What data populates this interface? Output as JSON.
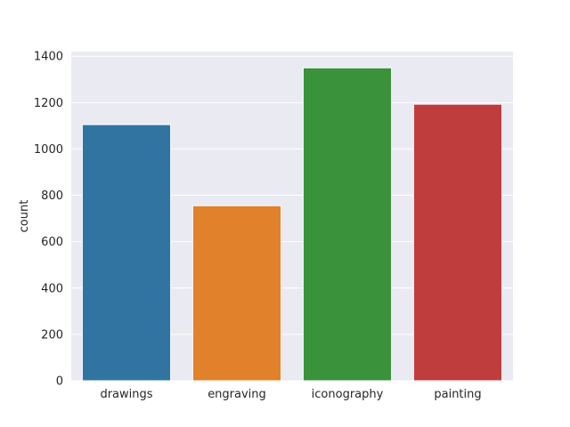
{
  "chart_data": {
    "type": "bar",
    "title": "",
    "xlabel": "",
    "ylabel": "count",
    "categories": [
      "drawings",
      "engraving",
      "iconography",
      "painting"
    ],
    "values": [
      1105,
      755,
      1350,
      1193
    ],
    "colors": [
      "#3274a1",
      "#e1812c",
      "#3a923a",
      "#c03d3e"
    ],
    "ylim": [
      0,
      1420
    ],
    "yticks": [
      0,
      200,
      400,
      600,
      800,
      1000,
      1200,
      1400
    ],
    "grid": true,
    "style": "seaborn-darkgrid"
  },
  "theme": {
    "plot_background": "#eaeaf2",
    "grid_color": "#ffffff",
    "bar_edge": "#ffffff"
  }
}
